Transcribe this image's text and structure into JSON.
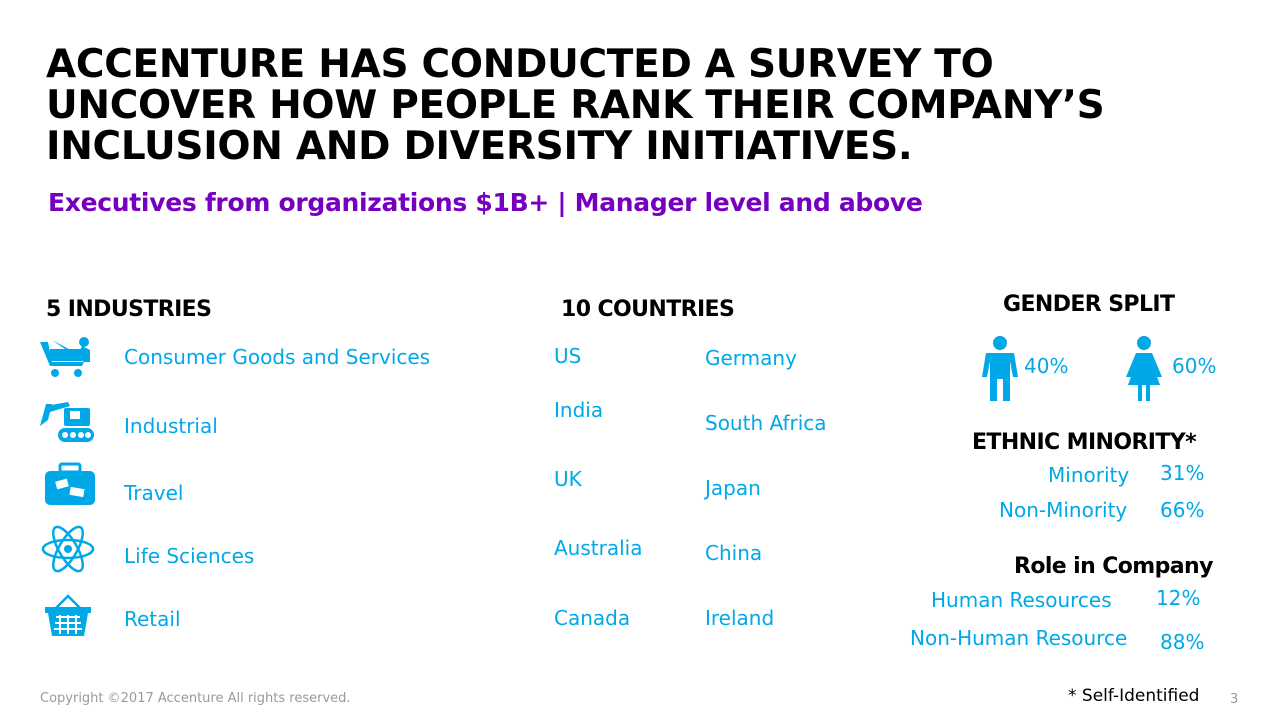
{
  "title": {
    "line1": "ACCENTURE HAS CONDUCTED A SURVEY TO",
    "line2": "UNCOVER HOW PEOPLE RANK THEIR COMPANY’S",
    "line3": "INCLUSION AND DIVERSITY INITIATIVES."
  },
  "subtitle": "Executives from organizations $1B+ | Manager level and above",
  "industries": {
    "heading": "5 INDUSTRIES",
    "items": [
      {
        "label": "Consumer Goods and Services",
        "icon": "shopping-cart-icon"
      },
      {
        "label": "Industrial",
        "icon": "excavator-icon"
      },
      {
        "label": "Travel",
        "icon": "suitcase-icon"
      },
      {
        "label": "Life Sciences",
        "icon": "atom-icon"
      },
      {
        "label": "Retail",
        "icon": "basket-icon"
      }
    ]
  },
  "countries": {
    "heading": "10 COUNTRIES",
    "col1": [
      "US",
      "India",
      "UK",
      "Australia",
      "Canada"
    ],
    "col2": [
      "Germany",
      "South Africa",
      "Japan",
      "China",
      "Ireland"
    ]
  },
  "gender": {
    "heading": "GENDER SPLIT",
    "male": "40%",
    "female": "60%"
  },
  "ethnic": {
    "heading": "ETHNIC MINORITY*",
    "rows": [
      {
        "label": "Minority",
        "value": "31%"
      },
      {
        "label": "Non-Minority",
        "value": "66%"
      }
    ]
  },
  "role": {
    "heading": "Role in Company",
    "rows": [
      {
        "label": "Human Resources",
        "value": "12%"
      },
      {
        "label": "Non-Human Resource",
        "value": "88%"
      }
    ]
  },
  "footer": {
    "copyright": "Copyright ©2017 Accenture  All rights reserved.",
    "note": "* Self-Identified",
    "page": "3"
  },
  "colors": {
    "accent_purple": "#7500c0",
    "accent_blue": "#00a8e8"
  }
}
